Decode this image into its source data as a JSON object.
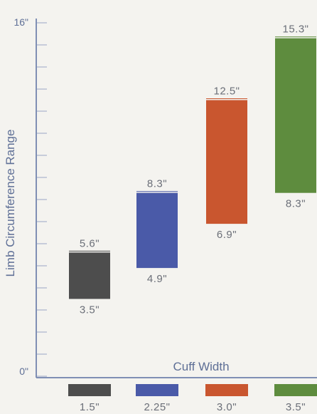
{
  "chart_data": {
    "type": "bar",
    "subtype": "floating-range",
    "title": "",
    "ylabel": "Limb Circumference Range",
    "xlabel": "Cuff Width",
    "ylim": [
      0,
      16
    ],
    "y_tick_labels": {
      "max": "16\"",
      "min": "0\""
    },
    "categories": [
      "1.5\"",
      "2.25\"",
      "3.0\"",
      "3.5\""
    ],
    "ranges": [
      {
        "low": 3.5,
        "high": 5.6,
        "low_label": "3.5\"",
        "high_label": "5.6\"",
        "color": "#4d4d4d"
      },
      {
        "low": 4.9,
        "high": 8.3,
        "low_label": "4.9\"",
        "high_label": "8.3\"",
        "color": "#4a5aa8"
      },
      {
        "low": 6.9,
        "high": 12.5,
        "low_label": "6.9\"",
        "high_label": "12.5\"",
        "color": "#c9562f"
      },
      {
        "low": 8.3,
        "high": 15.3,
        "low_label": "8.3\"",
        "high_label": "15.3\"",
        "color": "#5e8c3e"
      }
    ],
    "legend_placement": "bottom",
    "grid": false
  }
}
